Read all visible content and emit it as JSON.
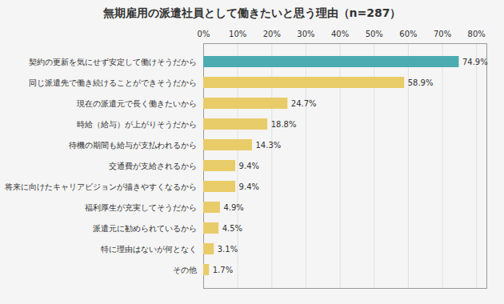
{
  "chart_data": {
    "type": "bar",
    "orientation": "horizontal",
    "title": "無期雇用の派遣社員として働きたいと思う理由（n=287）",
    "categories": [
      "契約の更新を気にせず安定して働けそうだから",
      "同じ派遣先で働き続けることができそうだから",
      "現在の派遣元で長く働きたいから",
      "時給（給与）が上がりそうだから",
      "待機の期間も給与が支払われるから",
      "交通費が支給されるから",
      "将来に向けたキャリアビジョンが描きやすくなるから",
      "福利厚生が充実してそうだから",
      "派遣元に勧められているから",
      "特に理由はないが何となく",
      "その他"
    ],
    "values": [
      74.9,
      58.9,
      24.7,
      18.8,
      14.3,
      9.4,
      9.4,
      4.9,
      4.5,
      3.1,
      1.7
    ],
    "value_labels": [
      "74.9%",
      "58.9%",
      "24.7%",
      "18.8%",
      "14.3%",
      "9.4%",
      "9.4%",
      "4.9%",
      "4.5%",
      "3.1%",
      "1.7%"
    ],
    "colors": [
      "#4BABB0",
      "#E8CC6A",
      "#E8CC6A",
      "#E8CC6A",
      "#E8CC6A",
      "#E8CC6A",
      "#E8CC6A",
      "#E8CC6A",
      "#E8CC6A",
      "#E8CC6A",
      "#E8CC6A"
    ],
    "xlim": [
      0,
      83
    ],
    "xticks": [
      {
        "value": 0,
        "label": "0%"
      },
      {
        "value": 10,
        "label": "10%"
      },
      {
        "value": 20,
        "label": "20%"
      },
      {
        "value": 30,
        "label": "30%"
      },
      {
        "value": 40,
        "label": "40%"
      },
      {
        "value": 50,
        "label": "50%"
      },
      {
        "value": 60,
        "label": "60%"
      },
      {
        "value": 70,
        "label": "70%"
      },
      {
        "value": 80,
        "label": "80%"
      }
    ],
    "grid": true,
    "data_labels": true
  }
}
